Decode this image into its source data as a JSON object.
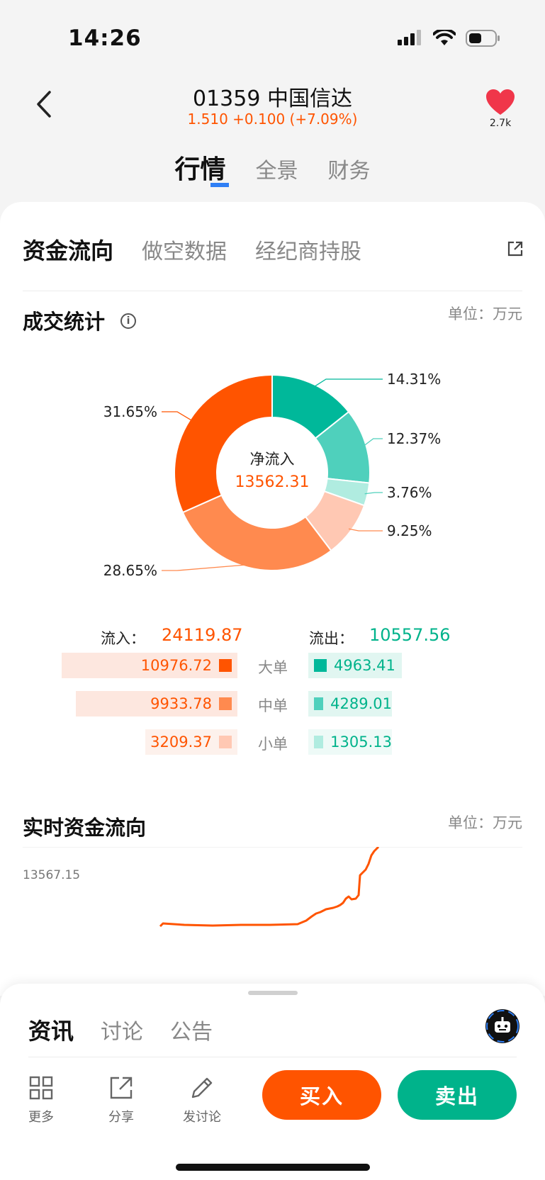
{
  "status_bar": {
    "time": "14:26"
  },
  "header": {
    "stock_title": "01359 中国信达",
    "price_line": "1.510 +0.100 (+7.09%)",
    "favorite_count": "2.7k",
    "tabs": [
      {
        "label": "行情"
      },
      {
        "label": "全景"
      },
      {
        "label": "财务"
      }
    ]
  },
  "card": {
    "sub_tabs": [
      {
        "label": "资金流向"
      },
      {
        "label": "做空数据"
      },
      {
        "label": "经纪商持股"
      }
    ],
    "deal_stats": {
      "title": "成交统计",
      "unit": "单位：万元"
    },
    "donut": {
      "center_label": "净流入",
      "center_value": "13562.31",
      "labels": [
        "14.31%",
        "12.37%",
        "3.76%",
        "9.25%",
        "28.65%",
        "31.65%"
      ]
    },
    "flow": {
      "inflow_label": "流入：",
      "inflow_value": "24119.87",
      "outflow_label": "流出：",
      "outflow_value": "10557.56",
      "rows": [
        {
          "type": "大单",
          "in": "10976.72",
          "out": "4963.41"
        },
        {
          "type": "中单",
          "in": "9933.78",
          "out": "4289.01"
        },
        {
          "type": "小单",
          "in": "3209.37",
          "out": "1305.13"
        }
      ]
    },
    "realtime": {
      "title": "实时资金流向",
      "unit": "单位：万元",
      "ymax": "13567.15"
    }
  },
  "chart_data": {
    "type": "pie",
    "categories": [
      "大单流出",
      "中单流出",
      "小单流出",
      "小单流入",
      "中单流入",
      "大单流入"
    ],
    "values": [
      14.31,
      12.37,
      3.76,
      9.25,
      28.65,
      31.65
    ],
    "colors": [
      "#00b89a",
      "#4fd0bc",
      "#b0ece0",
      "#ffc8b3",
      "#ff8a4f",
      "#ff5400"
    ]
  },
  "sheet": {
    "tabs": [
      {
        "label": "资讯"
      },
      {
        "label": "讨论"
      },
      {
        "label": "公告"
      }
    ],
    "tools": [
      {
        "label": "更多"
      },
      {
        "label": "分享"
      },
      {
        "label": "发讨论"
      }
    ],
    "buy_label": "买入",
    "sell_label": "卖出"
  },
  "colors": {
    "up": "#ff5400",
    "down": "#00b38b",
    "accent": "#2f7ff5"
  }
}
